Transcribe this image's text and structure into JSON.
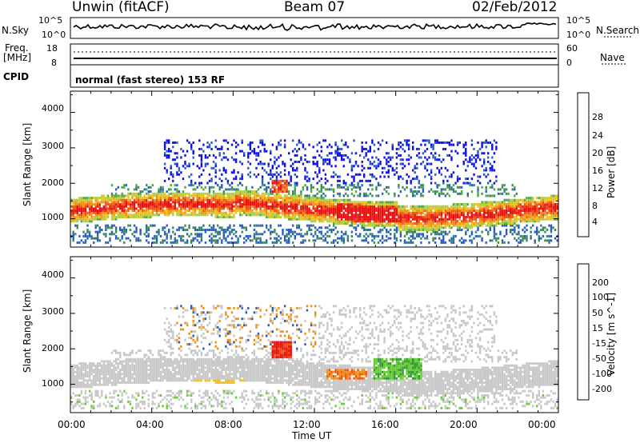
{
  "header": {
    "station": "Unwin (fitACF)",
    "beam": "Beam 07",
    "date": "02/Feb/2012"
  },
  "nsky": {
    "left_label": "N.Sky",
    "right_label": "N.Search",
    "ticks_left": [
      "10^5",
      "10^0"
    ],
    "ticks_right": [
      "10^5",
      "10^0"
    ]
  },
  "freq": {
    "left_label_line1": "Freq.",
    "left_label_line2": "[MHz]",
    "right_label": "Nave",
    "ticks_left": [
      "18",
      "8"
    ],
    "ticks_right": [
      "60",
      "0"
    ]
  },
  "cpid": {
    "label": "CPID",
    "value": "normal (fast stereo) 153 RF"
  },
  "colors": {
    "power": [
      "#1010e8",
      "#2a5fc0",
      "#3a8a5a",
      "#4caa4c",
      "#a8d040",
      "#f0c020",
      "#f09018",
      "#f05010",
      "#e81010"
    ],
    "velocity": [
      "#e81010",
      "#f05010",
      "#f09018",
      "#f0c020",
      "#c8c8c8",
      "#66cc33",
      "#339933",
      "#2a5fc0",
      "#1010c8"
    ]
  },
  "chart_data": [
    {
      "type": "heatmap",
      "title": "",
      "quantity": "Power",
      "colorbar_label": "Power [dB]",
      "colorbar_ticks": [
        "4",
        "8",
        "12",
        "16",
        "20",
        "24",
        "28"
      ],
      "ylabel": "Slant Range [km]",
      "xlabel": "",
      "y_ticks": [
        "1000",
        "2000",
        "3000",
        "4000"
      ],
      "ylim": [
        200,
        4600
      ],
      "xlim": [
        "00:00",
        "24:00"
      ],
      "features": [
        {
          "desc": "main scatter band",
          "x_range": [
            "00:00",
            "24:00"
          ],
          "y_range": [
            900,
            1700
          ],
          "level_db": 16
        },
        {
          "desc": "strong echoes",
          "x_range": [
            "13:00",
            "16:00"
          ],
          "y_range": [
            1000,
            1500
          ],
          "level_db": 26
        },
        {
          "desc": "upper band",
          "x_range": [
            "05:00",
            "22:00"
          ],
          "y_range": [
            2000,
            3300
          ],
          "level_db": 6
        }
      ]
    },
    {
      "type": "heatmap",
      "title": "",
      "quantity": "Velocity",
      "colorbar_label": "Velocity [m s^-1]",
      "colorbar_ticks": [
        "200",
        "100",
        "50",
        "15",
        "-15",
        "-50",
        "-100",
        "-200"
      ],
      "ylabel": "Slant Range [km]",
      "xlabel": "Time UT",
      "y_ticks": [
        "1000",
        "2000",
        "3000",
        "4000"
      ],
      "x_ticks": [
        "00:00",
        "04:00",
        "08:00",
        "12:00",
        "16:00",
        "20:00",
        "00:00"
      ],
      "ylim": [
        200,
        4600
      ],
      "xlim": [
        "00:00",
        "24:00"
      ],
      "features": [
        {
          "desc": "ground scatter",
          "x_range": [
            "00:00",
            "24:00"
          ],
          "y_range": [
            900,
            1700
          ],
          "velocity": 0
        },
        {
          "desc": "negative velocity patch",
          "x_range": [
            "10:00",
            "11:00"
          ],
          "y_range": [
            1800,
            2300
          ],
          "velocity": -200
        },
        {
          "desc": "positive velocity patch",
          "x_range": [
            "15:00",
            "17:00"
          ],
          "y_range": [
            1200,
            1800
          ],
          "velocity": 50
        }
      ]
    }
  ]
}
